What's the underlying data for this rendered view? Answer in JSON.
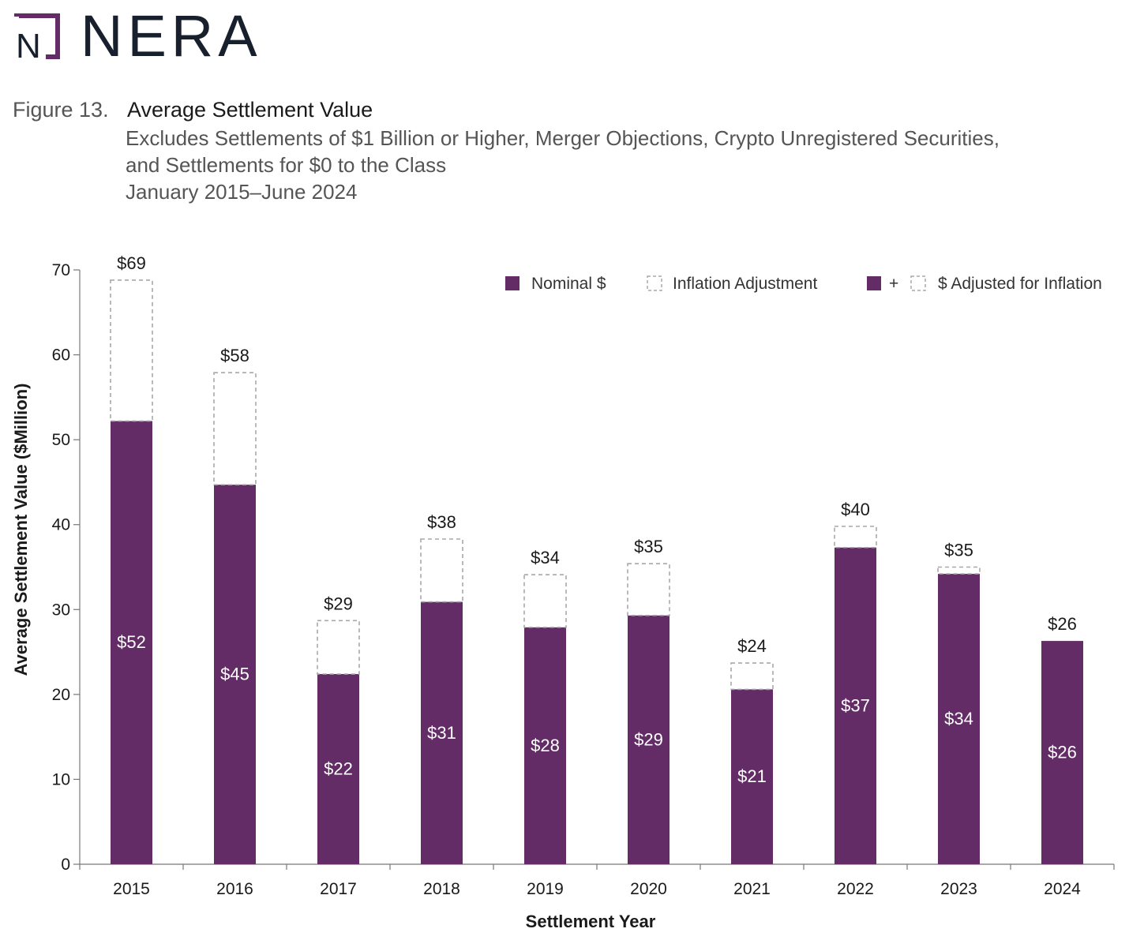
{
  "logo": {
    "wordmark": "NERA",
    "mark_letter": "N"
  },
  "figure": {
    "number": "Figure 13.",
    "title": "Average Settlement Value",
    "subtitle_lines": [
      "Excludes Settlements of $1 Billion or Higher, Merger Objections, Crypto Unregistered Securities,",
      "and Settlements for $0 to the Class",
      "January 2015–June 2024"
    ]
  },
  "colors": {
    "nominal": "#642c67",
    "adjustment_border": "#a8a8a8",
    "text": "#1a1a1a"
  },
  "chart_data": {
    "type": "bar",
    "stacked": true,
    "categories": [
      "2015",
      "2016",
      "2017",
      "2018",
      "2019",
      "2020",
      "2021",
      "2022",
      "2023",
      "2024"
    ],
    "series": [
      {
        "name": "Nominal $",
        "values": [
          52.2,
          44.7,
          22.4,
          30.9,
          27.9,
          29.3,
          20.6,
          37.3,
          34.2,
          26.3
        ]
      },
      {
        "name": "Inflation Adjustment",
        "values": [
          16.6,
          13.2,
          6.3,
          7.4,
          6.2,
          6.1,
          3.1,
          2.5,
          0.8,
          0
        ]
      }
    ],
    "nominal_labels": [
      "$52",
      "$45",
      "$22",
      "$31",
      "$28",
      "$29",
      "$21",
      "$37",
      "$34",
      "$26"
    ],
    "total_labels": [
      "$69",
      "$58",
      "$29",
      "$38",
      "$34",
      "$35",
      "$24",
      "$40",
      "$35",
      "$26"
    ],
    "ylabel": "Average Settlement Value ($Million)",
    "xlabel": "Settlement Year",
    "ylim": [
      0,
      70
    ],
    "yticks": [
      0,
      10,
      20,
      30,
      40,
      50,
      60,
      70
    ],
    "legend": {
      "placement": "top-right",
      "items": [
        "Nominal $",
        "Inflation Adjustment",
        "+",
        "$ Adjusted for Inflation"
      ]
    }
  }
}
